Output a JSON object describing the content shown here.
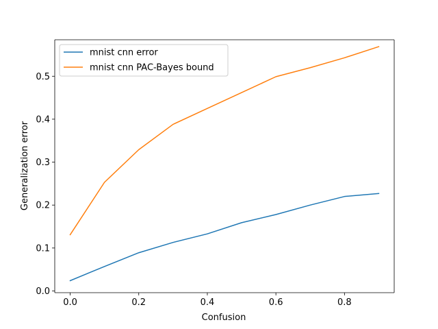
{
  "chart_data": {
    "type": "line",
    "title": "",
    "xlabel": "Confusion",
    "ylabel": "Generalization error",
    "xlim": [
      -0.045,
      0.945
    ],
    "ylim": [
      -0.004,
      0.585
    ],
    "xticks": [
      0.0,
      0.2,
      0.4,
      0.6,
      0.8
    ],
    "xtick_labels": [
      "0.0",
      "0.2",
      "0.4",
      "0.6",
      "0.8"
    ],
    "yticks": [
      0.0,
      0.1,
      0.2,
      0.3,
      0.4,
      0.5
    ],
    "ytick_labels": [
      "0.0",
      "0.1",
      "0.2",
      "0.3",
      "0.4",
      "0.5"
    ],
    "grid": false,
    "legend_position": "upper-left",
    "x": [
      0.0,
      0.1,
      0.2,
      0.3,
      0.4,
      0.5,
      0.6,
      0.7,
      0.8,
      0.9
    ],
    "series": [
      {
        "name": "mnist cnn error",
        "color": "#1f77b4",
        "values": [
          0.024,
          0.057,
          0.089,
          0.113,
          0.133,
          0.159,
          0.178,
          0.2,
          0.22,
          0.227
        ]
      },
      {
        "name": "mnist cnn PAC-Bayes bound",
        "color": "#ff7f0e",
        "values": [
          0.131,
          0.253,
          0.329,
          0.388,
          0.425,
          0.462,
          0.499,
          0.52,
          0.543,
          0.569
        ]
      }
    ]
  }
}
